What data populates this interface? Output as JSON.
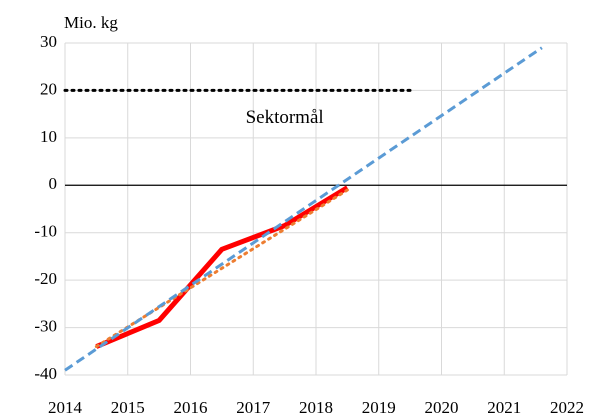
{
  "chart_data": {
    "type": "line",
    "ylabel": "Mio. kg",
    "annotation": {
      "text": "Sektormål",
      "x": 2017.5,
      "y": 14
    },
    "xlim": [
      2014,
      2022
    ],
    "xticks": [
      2014,
      2015,
      2016,
      2017,
      2018,
      2019,
      2020,
      2021,
      2022
    ],
    "ylim": [
      -40,
      30
    ],
    "yticks": [
      -40,
      -30,
      -20,
      -10,
      0,
      10,
      20,
      30
    ],
    "grid": true,
    "series": [
      {
        "color": "#ff0000",
        "style": "solid",
        "x": [
          2014.5,
          2015.5,
          2016.5,
          2017.5,
          2018.5
        ],
        "values": [
          -34,
          -28.5,
          -13.5,
          -8.5,
          -0.5
        ]
      },
      {
        "color": "#ed7d31",
        "style": "dotted",
        "x": [
          2014.5,
          2018.5
        ],
        "values": [
          -34,
          -1
        ]
      },
      {
        "color": "#5b9bd5",
        "style": "dashed",
        "x": [
          2014,
          2021.6
        ],
        "values": [
          -39,
          29
        ]
      },
      {
        "color": "#000000",
        "style": "dotted",
        "x": [
          2014,
          2019.5
        ],
        "values": [
          20,
          20
        ]
      }
    ]
  }
}
